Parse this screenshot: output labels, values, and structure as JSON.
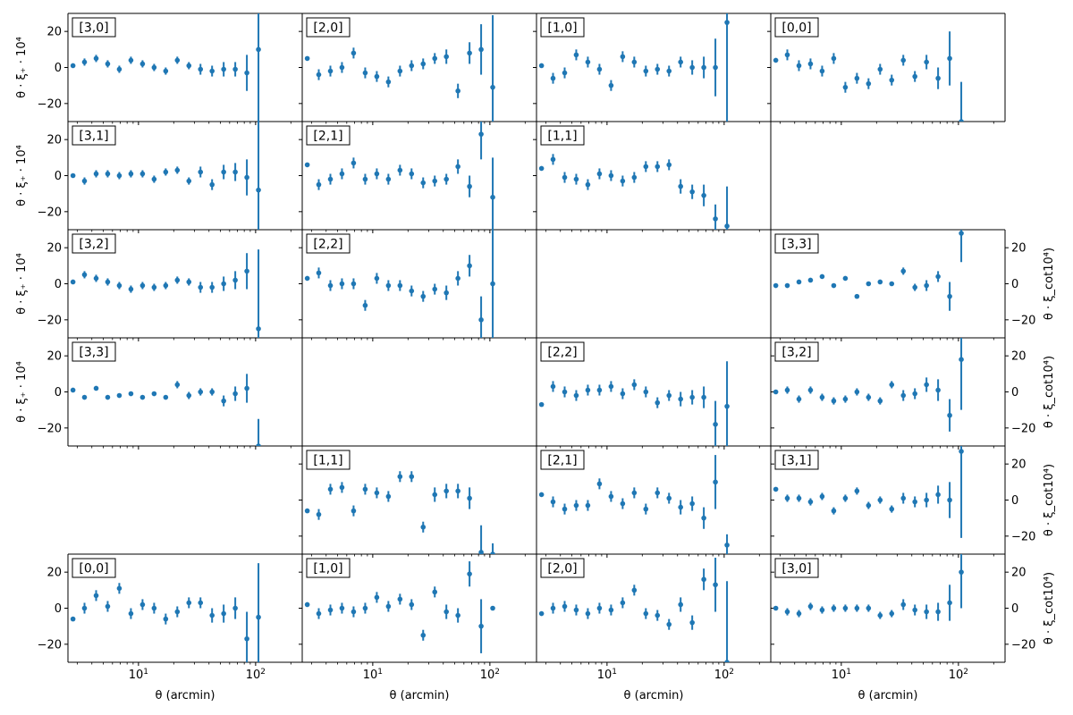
{
  "figure": {
    "xlabel": "θ (arcmin)",
    "ylabel_left": "θ · ξ₊ · 10⁴",
    "ylabel_right": "θ · ξ_cot10⁴)",
    "x_ticks": [
      "10¹",
      "10²"
    ],
    "y_ticks": [
      "20",
      "0",
      "−20"
    ],
    "marker_color": "#1f77b4"
  },
  "chart_data": {
    "type": "scatter",
    "x_scale": "log",
    "xlim": [
      2.5,
      250
    ],
    "ylim": [
      -30,
      30
    ],
    "x": [
      2.76,
      3.46,
      4.35,
      5.46,
      6.86,
      8.62,
      10.83,
      13.6,
      17.08,
      21.45,
      26.94,
      33.84,
      42.5,
      53.38,
      67.04,
      84.2,
      105.76
    ],
    "panels": [
      {
        "row": 0,
        "col": 0,
        "label": "[3,0]",
        "side": "left",
        "y": [
          1,
          3,
          5,
          2,
          -1,
          4,
          2,
          0,
          -2,
          4,
          1,
          -1,
          -2,
          -1,
          -1,
          -3,
          10
        ],
        "err": [
          1,
          2,
          2,
          2,
          2,
          2,
          2,
          2,
          2,
          2,
          2,
          3,
          3,
          4,
          4,
          10,
          40
        ]
      },
      {
        "row": 0,
        "col": 1,
        "label": "[2,0]",
        "side": "left",
        "y": [
          5,
          -4,
          -2,
          0,
          8,
          -3,
          -5,
          -8,
          -2,
          1,
          2,
          5,
          6,
          -13,
          8,
          10,
          -11
        ],
        "err": [
          1,
          3,
          3,
          3,
          3,
          3,
          3,
          3,
          3,
          3,
          3,
          3,
          4,
          4,
          6,
          14,
          40
        ]
      },
      {
        "row": 0,
        "col": 2,
        "label": "[1,0]",
        "side": "left",
        "y": [
          1,
          -6,
          -3,
          7,
          3,
          -1,
          -10,
          6,
          3,
          -2,
          -1,
          -2,
          3,
          0,
          0,
          0,
          25
        ],
        "err": [
          1,
          3,
          3,
          3,
          3,
          3,
          3,
          3,
          3,
          3,
          3,
          3,
          3,
          4,
          6,
          16,
          60
        ]
      },
      {
        "row": 0,
        "col": 3,
        "label": "[0,0]",
        "side": "left",
        "y": [
          4,
          7,
          1,
          2,
          -2,
          5,
          -11,
          -6,
          -9,
          -1,
          -7,
          4,
          -5,
          3,
          -6,
          5,
          -30
        ],
        "err": [
          1,
          3,
          3,
          3,
          3,
          3,
          3,
          3,
          3,
          3,
          3,
          3,
          3,
          4,
          6,
          15,
          22
        ]
      },
      {
        "row": 1,
        "col": 0,
        "label": "[3,1]",
        "side": "left",
        "y": [
          0,
          -3,
          1,
          1,
          0,
          1,
          1,
          -2,
          2,
          3,
          -3,
          2,
          -5,
          2,
          2,
          -1,
          -8
        ],
        "err": [
          1,
          2,
          2,
          2,
          2,
          2,
          2,
          2,
          2,
          2,
          2,
          3,
          3,
          4,
          5,
          10,
          40
        ]
      },
      {
        "row": 1,
        "col": 1,
        "label": "[2,1]",
        "side": "left",
        "y": [
          6,
          -5,
          -2,
          1,
          7,
          -2,
          1,
          -2,
          3,
          1,
          -4,
          -3,
          -2,
          5,
          -6,
          23,
          -12
        ],
        "err": [
          1,
          3,
          3,
          3,
          3,
          3,
          3,
          3,
          3,
          3,
          3,
          3,
          3,
          4,
          6,
          14,
          22
        ]
      },
      {
        "row": 1,
        "col": 2,
        "label": "[1,1]",
        "side": "left",
        "y": [
          4,
          9,
          -1,
          -2,
          -5,
          1,
          0,
          -3,
          -1,
          5,
          5,
          6,
          -6,
          -9,
          -11,
          -24,
          -28
        ],
        "err": [
          1,
          3,
          3,
          3,
          3,
          3,
          3,
          3,
          3,
          3,
          3,
          3,
          4,
          4,
          6,
          8,
          22
        ]
      },
      {
        "row": 2,
        "col": 0,
        "label": "[3,2]",
        "side": "left",
        "y": [
          1,
          5,
          3,
          1,
          -1,
          -3,
          -1,
          -2,
          -1,
          2,
          1,
          -2,
          -2,
          0,
          2,
          7,
          -25
        ],
        "err": [
          1,
          2,
          2,
          2,
          2,
          2,
          2,
          2,
          2,
          2,
          2,
          3,
          3,
          4,
          5,
          10,
          44
        ]
      },
      {
        "row": 2,
        "col": 1,
        "label": "[2,2]",
        "side": "left",
        "y": [
          3,
          6,
          -1,
          0,
          0,
          -12,
          3,
          -1,
          -1,
          -4,
          -7,
          -3,
          -5,
          3,
          10,
          -20,
          0
        ],
        "err": [
          1,
          3,
          3,
          3,
          3,
          3,
          3,
          3,
          3,
          3,
          3,
          3,
          4,
          4,
          6,
          13,
          45
        ]
      },
      {
        "row": 2,
        "col": 3,
        "label": "[3,3]",
        "side": "right",
        "y": [
          -1,
          -1,
          1,
          2,
          4,
          -1,
          3,
          -7,
          0,
          1,
          0,
          7,
          -2,
          -1,
          4,
          -7,
          28
        ],
        "err": [
          1,
          1,
          1,
          1,
          1,
          1,
          1,
          1,
          1,
          1,
          1,
          2,
          2,
          3,
          3,
          8,
          16
        ]
      },
      {
        "row": 3,
        "col": 0,
        "label": "[3,3]",
        "side": "left",
        "y": [
          1,
          -3,
          2,
          -3,
          -2,
          -1,
          -3,
          -1,
          -3,
          4,
          -2,
          0,
          0,
          -5,
          -1,
          2,
          -30
        ],
        "err": [
          1,
          1,
          1,
          1,
          1,
          1,
          1,
          1,
          1,
          2,
          2,
          2,
          2,
          3,
          4,
          8,
          15
        ]
      },
      {
        "row": 3,
        "col": 2,
        "label": "[2,2]",
        "side": "right",
        "y": [
          -7,
          3,
          0,
          -2,
          1,
          1,
          3,
          -1,
          4,
          0,
          -6,
          -2,
          -4,
          -3,
          -3,
          -18,
          -8
        ],
        "err": [
          1,
          3,
          3,
          3,
          3,
          3,
          3,
          3,
          3,
          3,
          3,
          3,
          4,
          4,
          6,
          13,
          25
        ]
      },
      {
        "row": 3,
        "col": 3,
        "label": "[3,2]",
        "side": "right",
        "y": [
          0,
          1,
          -4,
          1,
          -3,
          -5,
          -4,
          0,
          -3,
          -5,
          4,
          -2,
          -1,
          4,
          1,
          -13,
          18
        ],
        "err": [
          1,
          2,
          2,
          2,
          2,
          2,
          2,
          2,
          2,
          2,
          2,
          3,
          3,
          4,
          6,
          9,
          28
        ]
      },
      {
        "row": 4,
        "col": 1,
        "label": "[1,1]",
        "side": "left",
        "y": [
          -6,
          -8,
          6,
          7,
          -6,
          6,
          4,
          2,
          13,
          13,
          -15,
          3,
          5,
          5,
          1,
          -29,
          -30
        ],
        "err": [
          1,
          3,
          3,
          3,
          3,
          3,
          3,
          3,
          3,
          3,
          3,
          4,
          4,
          4,
          6,
          15,
          6
        ]
      },
      {
        "row": 4,
        "col": 2,
        "label": "[2,1]",
        "side": "right",
        "y": [
          3,
          -1,
          -5,
          -3,
          -3,
          9,
          2,
          -2,
          4,
          -5,
          4,
          1,
          -4,
          -2,
          -10,
          10,
          -25
        ],
        "err": [
          1,
          3,
          3,
          3,
          3,
          3,
          3,
          3,
          3,
          3,
          3,
          3,
          4,
          4,
          6,
          15,
          6
        ]
      },
      {
        "row": 4,
        "col": 3,
        "label": "[3,1]",
        "side": "right",
        "y": [
          6,
          1,
          1,
          -1,
          2,
          -6,
          1,
          5,
          -3,
          0,
          -5,
          1,
          -1,
          0,
          3,
          0,
          27
        ],
        "err": [
          1,
          2,
          2,
          2,
          2,
          2,
          2,
          2,
          2,
          2,
          2,
          3,
          3,
          4,
          5,
          10,
          48
        ]
      },
      {
        "row": 5,
        "col": 0,
        "label": "[0,0]",
        "side": "left",
        "y": [
          -6,
          0,
          7,
          1,
          11,
          -3,
          2,
          0,
          -6,
          -2,
          3,
          3,
          -4,
          -3,
          0,
          -17,
          -5
        ],
        "err": [
          1,
          3,
          3,
          3,
          3,
          3,
          3,
          3,
          3,
          3,
          3,
          3,
          4,
          5,
          6,
          15,
          30
        ]
      },
      {
        "row": 5,
        "col": 1,
        "label": "[1,0]",
        "side": "left",
        "y": [
          2,
          -3,
          -1,
          0,
          -2,
          0,
          6,
          1,
          5,
          2,
          -15,
          9,
          -2,
          -4,
          19,
          -10,
          0
        ],
        "err": [
          1,
          3,
          3,
          3,
          3,
          3,
          3,
          3,
          3,
          3,
          3,
          3,
          4,
          4,
          7,
          15,
          0
        ]
      },
      {
        "row": 5,
        "col": 2,
        "label": "[2,0]",
        "side": "right",
        "y": [
          -3,
          0,
          1,
          -1,
          -3,
          0,
          -1,
          3,
          10,
          -3,
          -4,
          -9,
          2,
          -8,
          16,
          13,
          -30
        ],
        "err": [
          1,
          3,
          3,
          3,
          3,
          3,
          3,
          3,
          3,
          3,
          3,
          3,
          4,
          4,
          6,
          15,
          45
        ]
      },
      {
        "row": 5,
        "col": 3,
        "label": "[3,0]",
        "side": "right",
        "y": [
          0,
          -2,
          -3,
          1,
          -1,
          0,
          0,
          0,
          0,
          -4,
          -3,
          2,
          -1,
          -2,
          -2,
          3,
          20
        ],
        "err": [
          1,
          2,
          2,
          2,
          2,
          2,
          2,
          2,
          2,
          2,
          2,
          3,
          3,
          4,
          5,
          10,
          20
        ]
      }
    ]
  }
}
